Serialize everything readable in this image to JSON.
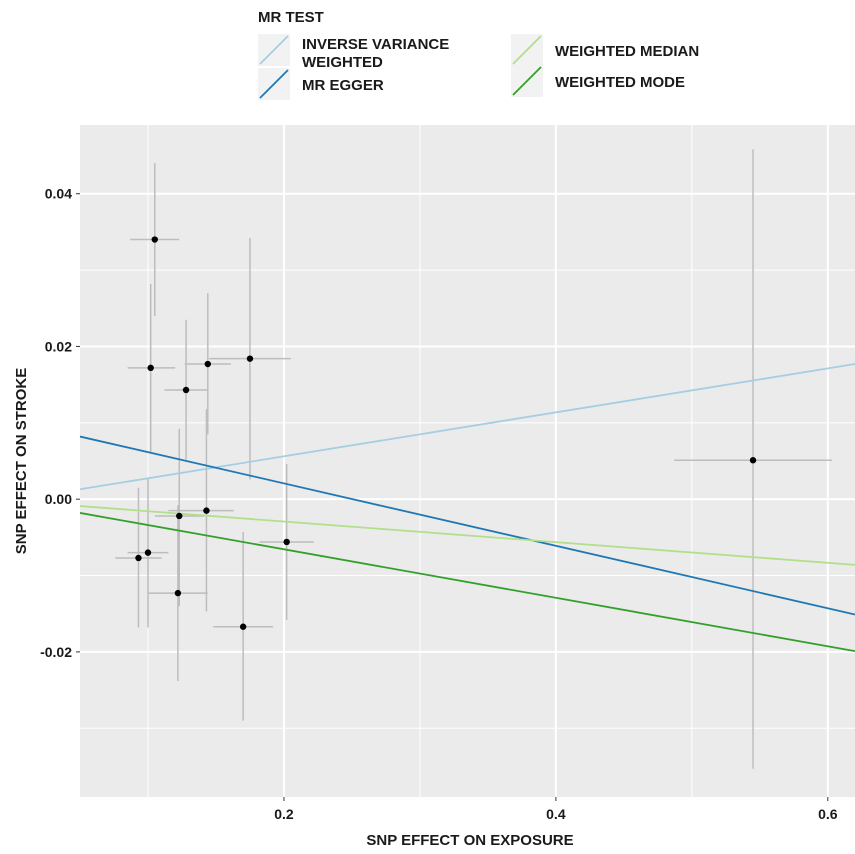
{
  "chart_data": {
    "type": "scatter",
    "title": "",
    "xlabel": "SNP EFFECT ON EXPOSURE",
    "ylabel": "SNP EFFECT ON STROKE",
    "xlim": [
      0.05,
      0.62
    ],
    "ylim": [
      -0.039,
      0.049
    ],
    "x_ticks": [
      0.2,
      0.4,
      0.6
    ],
    "x_tick_labels": [
      "0.2",
      "0.4",
      "0.6"
    ],
    "y_ticks": [
      -0.02,
      0.0,
      0.02,
      0.04
    ],
    "y_tick_labels": [
      "-0.02",
      "0.00",
      "0.02",
      "0.04"
    ],
    "grid": true,
    "legend": {
      "title": "MR TEST",
      "placement": "top"
    },
    "points": [
      {
        "x": 0.105,
        "y": 0.034,
        "x_low": 0.087,
        "x_high": 0.123,
        "y_low": 0.024,
        "y_high": 0.044
      },
      {
        "x": 0.102,
        "y": 0.0172,
        "x_low": 0.085,
        "x_high": 0.12,
        "y_low": 0.0062,
        "y_high": 0.0282
      },
      {
        "x": 0.128,
        "y": 0.0143,
        "x_low": 0.112,
        "x_high": 0.144,
        "y_low": 0.0052,
        "y_high": 0.0235
      },
      {
        "x": 0.144,
        "y": 0.0177,
        "x_low": 0.127,
        "x_high": 0.161,
        "y_low": 0.0085,
        "y_high": 0.027
      },
      {
        "x": 0.175,
        "y": 0.0184,
        "x_low": 0.145,
        "x_high": 0.205,
        "y_low": 0.0026,
        "y_high": 0.0342
      },
      {
        "x": 0.093,
        "y": -0.0077,
        "x_low": 0.076,
        "x_high": 0.11,
        "y_low": -0.0168,
        "y_high": 0.0015
      },
      {
        "x": 0.1,
        "y": -0.007,
        "x_low": 0.085,
        "x_high": 0.115,
        "y_low": -0.0168,
        "y_high": 0.0028
      },
      {
        "x": 0.123,
        "y": -0.0022,
        "x_low": 0.105,
        "x_high": 0.141,
        "y_low": -0.014,
        "y_high": 0.0092
      },
      {
        "x": 0.143,
        "y": -0.0015,
        "x_low": 0.115,
        "x_high": 0.163,
        "y_low": -0.0147,
        "y_high": 0.0118
      },
      {
        "x": 0.122,
        "y": -0.0123,
        "x_low": 0.1,
        "x_high": 0.144,
        "y_low": -0.0238,
        "y_high": -0.0008
      },
      {
        "x": 0.17,
        "y": -0.0167,
        "x_low": 0.148,
        "x_high": 0.192,
        "y_low": -0.029,
        "y_high": -0.0043
      },
      {
        "x": 0.202,
        "y": -0.0056,
        "x_low": 0.182,
        "x_high": 0.222,
        "y_low": -0.0158,
        "y_high": 0.0046
      },
      {
        "x": 0.545,
        "y": 0.0051,
        "x_low": 0.487,
        "x_high": 0.603,
        "y_low": -0.0353,
        "y_high": 0.0458
      }
    ],
    "series": [
      {
        "name": "INVERSE VARIANCE WEIGHTED",
        "color": "#a6cee3",
        "type": "line",
        "x": [
          0.05,
          0.62
        ],
        "y": [
          0.0013,
          0.0177
        ]
      },
      {
        "name": "MR EGGER",
        "color": "#1f78b4",
        "type": "line",
        "x": [
          0.05,
          0.62
        ],
        "y": [
          0.0082,
          -0.0151
        ]
      },
      {
        "name": "WEIGHTED MEDIAN",
        "color": "#b2df8a",
        "type": "line",
        "x": [
          0.05,
          0.62
        ],
        "y": [
          -0.0009,
          -0.0086
        ]
      },
      {
        "name": "WEIGHTED MODE",
        "color": "#33a02c",
        "type": "line",
        "x": [
          0.05,
          0.62
        ],
        "y": [
          -0.0018,
          -0.0199
        ]
      }
    ],
    "colors": {
      "panel_bg": "#ebebeb",
      "grid": "#ffffff",
      "point": "#000000",
      "errorbar": "#bdbdbd"
    }
  }
}
